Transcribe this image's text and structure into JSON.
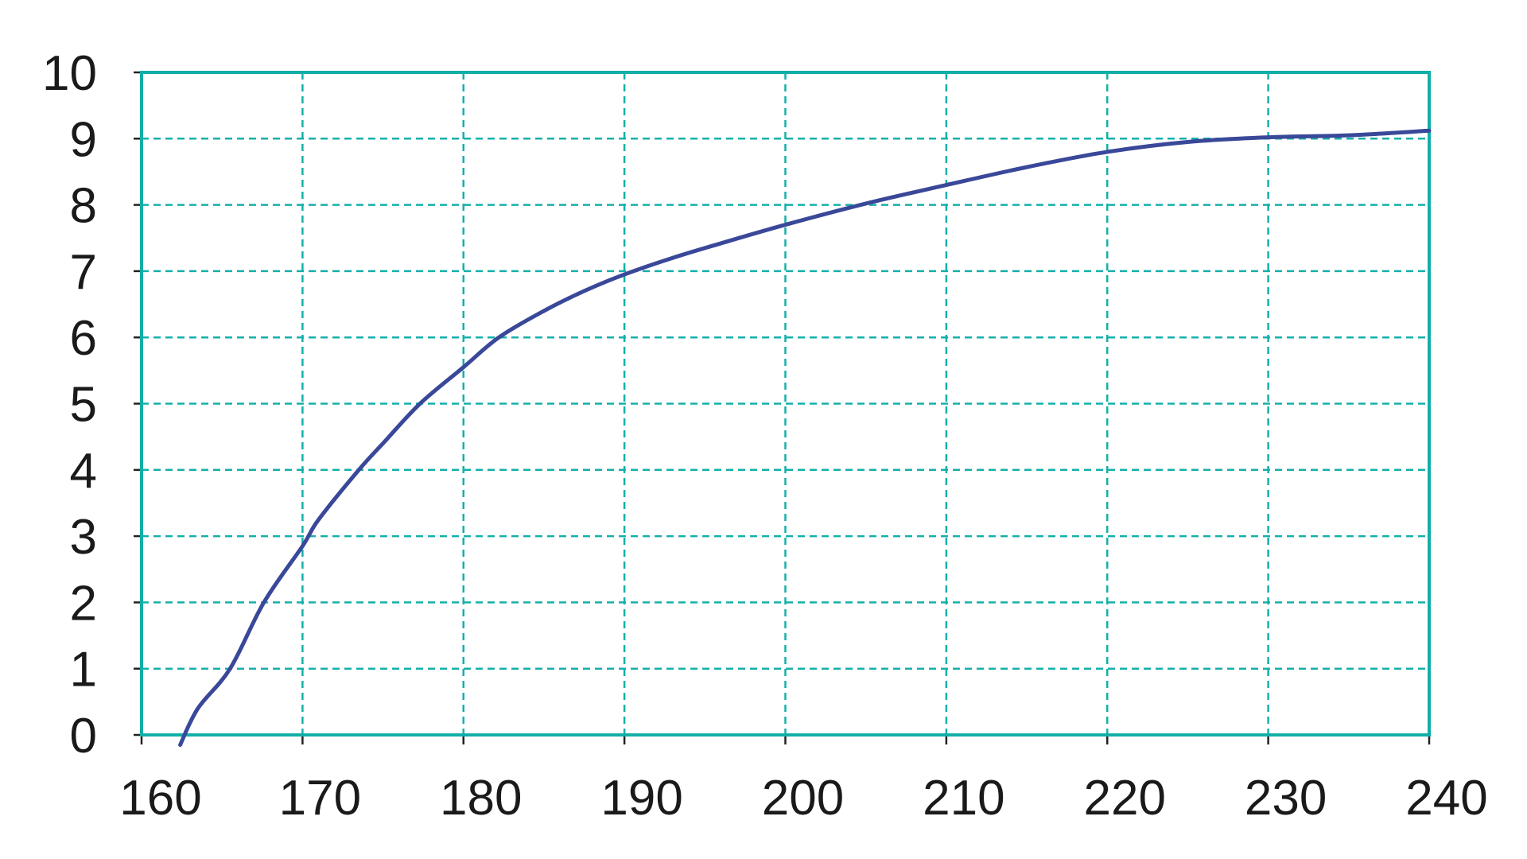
{
  "chart_data": {
    "type": "line",
    "title": "",
    "xlabel": "",
    "ylabel": "",
    "xlim": [
      160,
      240
    ],
    "ylim": [
      0,
      10
    ],
    "x_ticks": [
      "160",
      "170",
      "180",
      "190",
      "200",
      "210",
      "220",
      "230",
      "240"
    ],
    "y_ticks": [
      "0",
      "1",
      "2",
      "3",
      "4",
      "5",
      "6",
      "7",
      "8",
      "9",
      "10"
    ],
    "grid": true,
    "legend": "none",
    "colors": {
      "line": "#3a4899",
      "grid": "#14b0aa",
      "frame": "#12aea8",
      "ticks": "#222222"
    },
    "series": [
      {
        "x": [
          162.4,
          163.5,
          165.5,
          167.6,
          170,
          171,
          173.5,
          175,
          177.3,
          180,
          182.2,
          185,
          187.5,
          190,
          193,
          196,
          200,
          205,
          210,
          215,
          220,
          225,
          230,
          235,
          240
        ],
        "y": [
          -0.15,
          0.4,
          1.0,
          2.0,
          2.85,
          3.25,
          4.0,
          4.4,
          5.0,
          5.55,
          6.0,
          6.4,
          6.7,
          6.95,
          7.2,
          7.42,
          7.7,
          8.02,
          8.3,
          8.57,
          8.8,
          8.95,
          9.02,
          9.05,
          9.12
        ]
      }
    ]
  }
}
